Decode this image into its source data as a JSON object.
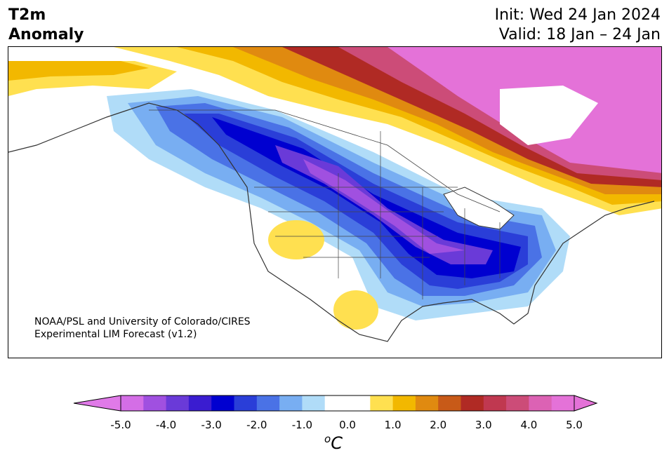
{
  "title": {
    "line1": "T2m",
    "line2": "Anomaly"
  },
  "init": "Init: Wed 24 Jan 2024",
  "valid": "Valid: 18 Jan – 24 Jan",
  "credit": {
    "line1": "NOAA/PSL and University of Colorado/CIRES",
    "line2": "Experimental LIM Forecast (v1.2)"
  },
  "colorbar": {
    "unit_symbol": "C",
    "unit_prefix": "o",
    "tick_labels": [
      "-5.0",
      "-4.0",
      "-3.0",
      "-2.0",
      "-1.0",
      "0.0",
      "1.0",
      "2.0",
      "3.0",
      "4.0",
      "5.0"
    ],
    "colors": [
      "#d46ee6",
      "#a050e0",
      "#6a3ad8",
      "#3a1cd0",
      "#0000d0",
      "#2a3ed8",
      "#4a72e6",
      "#78aef2",
      "#b0dcf8",
      "#ffffff",
      "#ffffff",
      "#ffe050",
      "#f2b800",
      "#e08a10",
      "#c85a18",
      "#b02a24",
      "#c03850",
      "#cc4c78",
      "#dc62b4",
      "#e472d8"
    ],
    "under_color": "#e07ae8",
    "over_color": "#e472d8"
  }
}
